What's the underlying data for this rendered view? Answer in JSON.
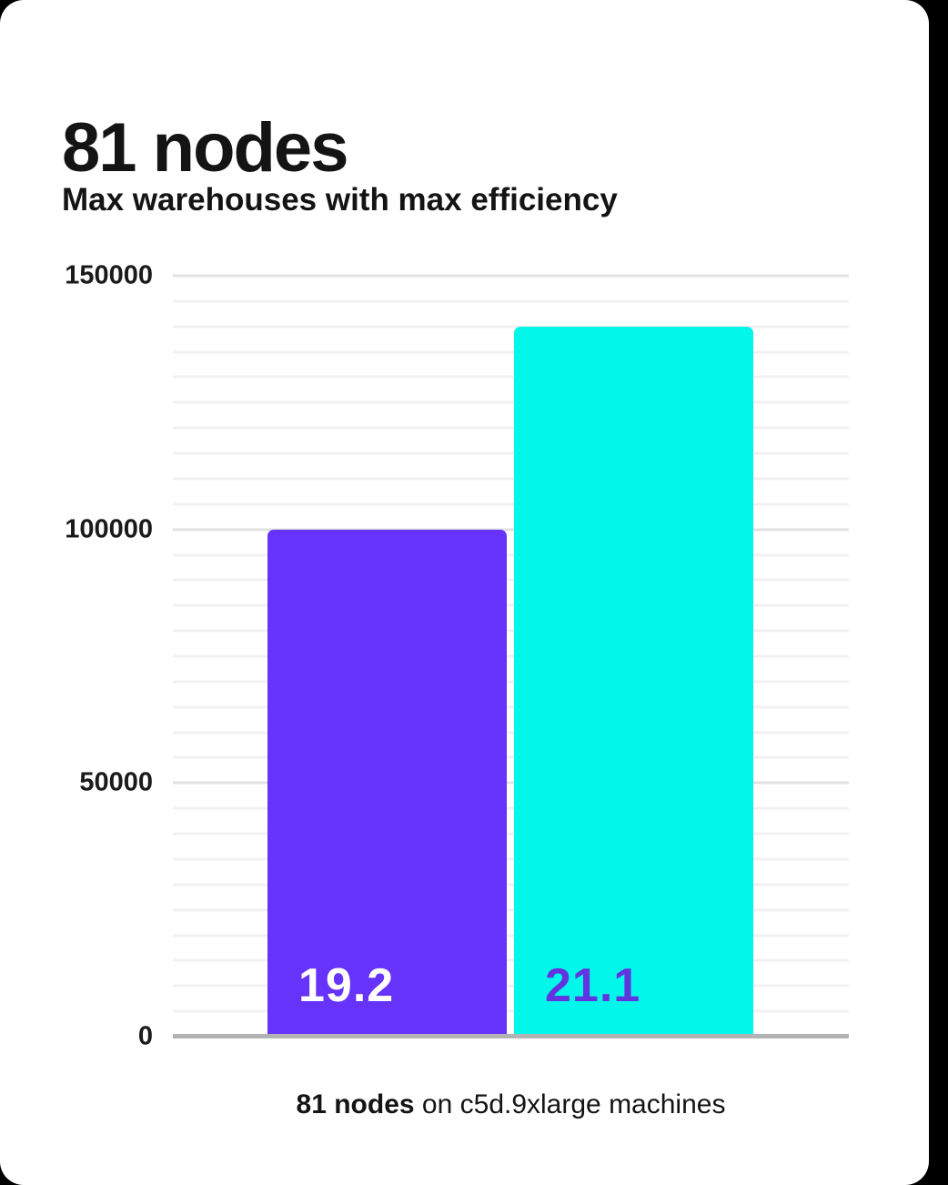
{
  "header": {
    "title": "81 nodes",
    "subtitle": "Max warehouses with max efficiency"
  },
  "caption": {
    "bold": "81 nodes",
    "rest": " on c5d.9xlarge machines"
  },
  "chart_data": {
    "type": "bar",
    "title": "81 nodes",
    "subtitle": "Max warehouses with max efficiency",
    "categories": [
      "19.2",
      "21.1"
    ],
    "values": [
      100000,
      140000
    ],
    "bar_colors": [
      "#6633fa",
      "#00f7ea"
    ],
    "bar_label_colors": [
      "#ffffff",
      "#6233df"
    ],
    "xlabel": "81 nodes on c5d.9xlarge machines",
    "ylabel": "",
    "ylim": [
      0,
      150000
    ],
    "yticks": [
      0,
      50000,
      100000,
      150000
    ],
    "minor_gridline_step": 5000,
    "grid": "horizontal",
    "legend": "none"
  },
  "colors": {
    "background": "#000000",
    "card": "#ffffff",
    "text": "#141414",
    "axis_line": "#b3b3b3",
    "gridline_minor": "#f1f1f1",
    "gridline_major": "#e2e2e2"
  }
}
